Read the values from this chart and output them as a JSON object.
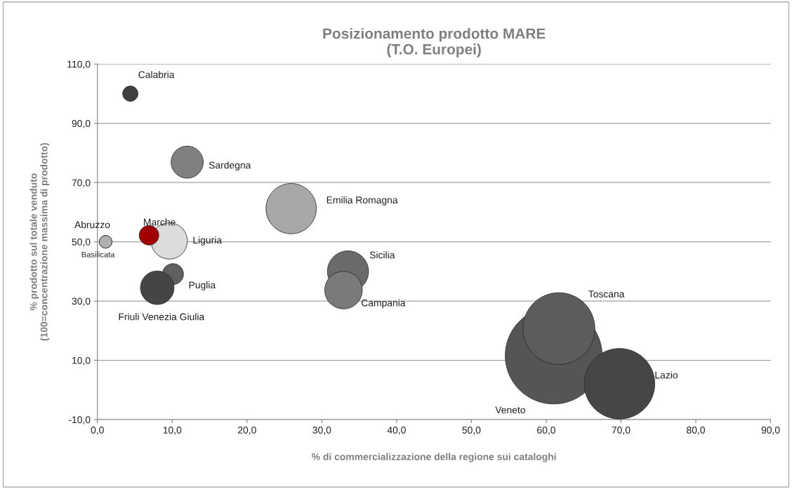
{
  "chart_data": {
    "type": "bubble",
    "title": "Posizionamento prodotto MARE\n(T.O. Europei)",
    "xlabel": "% di commercializzazione della regione sui cataloghi",
    "ylabel": "% prodotto sul totale venduto\n(100=concentrazione massima di prodotto)",
    "xlim": [
      0,
      90
    ],
    "ylim": [
      -10,
      110
    ],
    "xticks": [
      {
        "value": 0,
        "label": "0,0"
      },
      {
        "value": 10,
        "label": "10,0"
      },
      {
        "value": 20,
        "label": "20,0"
      },
      {
        "value": 30,
        "label": "30,0"
      },
      {
        "value": 40,
        "label": "40,0"
      },
      {
        "value": 50,
        "label": "50,0"
      },
      {
        "value": 60,
        "label": "60,0"
      },
      {
        "value": 70,
        "label": "70,0"
      },
      {
        "value": 80,
        "label": "80,0"
      },
      {
        "value": 90,
        "label": "90,0"
      }
    ],
    "yticks": [
      {
        "value": -10,
        "label": "-10,0"
      },
      {
        "value": 10,
        "label": "10,0"
      },
      {
        "value": 30,
        "label": "30,0"
      },
      {
        "value": 50,
        "label": "50,0"
      },
      {
        "value": 70,
        "label": "70,0"
      },
      {
        "value": 90,
        "label": "90,0"
      },
      {
        "value": 110,
        "label": "110,0"
      }
    ],
    "grid": "y",
    "legend": false,
    "series": [
      {
        "name": "Calabria",
        "color": "#404040",
        "x": [
          4.4
        ],
        "values": [
          100
        ],
        "sizes": [
          0.025
        ]
      },
      {
        "name": "Sardegna",
        "color": "#808080",
        "x": [
          12.0
        ],
        "values": [
          76.9
        ],
        "sizes": [
          0.11
        ]
      },
      {
        "name": "Emilia Romagna",
        "color": "#a8a8a8",
        "x": [
          25.9
        ],
        "values": [
          61.2
        ],
        "sizes": [
          0.27
        ]
      },
      {
        "name": "Liguria",
        "color": "#dcdcdc",
        "x": [
          9.6
        ],
        "values": [
          50.3
        ],
        "sizes": [
          0.14
        ]
      },
      {
        "name": "Marche",
        "color": "#a00000",
        "x": [
          6.9
        ],
        "values": [
          52.2
        ],
        "sizes": [
          0.041
        ]
      },
      {
        "name": "Abruzzo",
        "color": "#b0b0b0",
        "x": [
          1.1
        ],
        "values": [
          50.0
        ],
        "sizes": [
          0.017
        ]
      },
      {
        "name": "Basilicata",
        "color": "#b0b0b0",
        "x": [
          1.1
        ],
        "values": [
          50.0
        ],
        "sizes": [
          0.017
        ]
      },
      {
        "name": "Puglia",
        "color": "#606060",
        "x": [
          10.1
        ],
        "values": [
          39.1
        ],
        "sizes": [
          0.047
        ]
      },
      {
        "name": "Friuli Venezia Giulia",
        "color": "#454545",
        "x": [
          8.0
        ],
        "values": [
          34.5
        ],
        "sizes": [
          0.12
        ]
      },
      {
        "name": "Sicilia",
        "color": "#6a6a6a",
        "x": [
          33.5
        ],
        "values": [
          40.0
        ],
        "sizes": [
          0.18
        ]
      },
      {
        "name": "Campania",
        "color": "#7a7a7a",
        "x": [
          32.9
        ],
        "values": [
          33.7
        ],
        "sizes": [
          0.15
        ]
      },
      {
        "name": "Veneto",
        "color": "#555555",
        "x": [
          61.0
        ],
        "values": [
          11.6
        ],
        "sizes": [
          1
        ]
      },
      {
        "name": "Toscana",
        "color": "#5c5c5c",
        "x": [
          61.7
        ],
        "values": [
          20.7
        ],
        "sizes": [
          0.55
        ]
      },
      {
        "name": "Lazio",
        "color": "#464646",
        "x": [
          69.8
        ],
        "values": [
          2.1
        ],
        "sizes": [
          0.53
        ]
      }
    ]
  }
}
